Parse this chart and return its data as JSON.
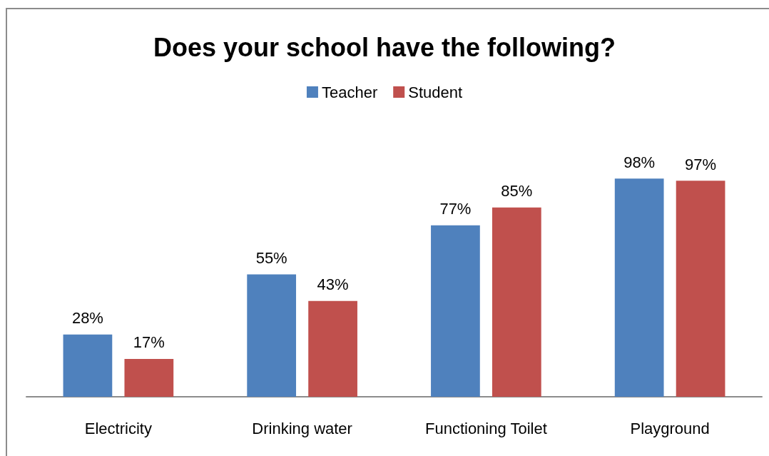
{
  "chart_data": {
    "type": "bar",
    "title": "Does your school have the following?",
    "categories": [
      "Electricity",
      "Drinking water",
      "Functioning Toilet",
      "Playground"
    ],
    "series": [
      {
        "name": "Teacher",
        "color": "#4f81bd",
        "values": [
          28,
          55,
          77,
          98
        ],
        "value_labels": [
          "28%",
          "55%",
          "77%",
          "98%"
        ]
      },
      {
        "name": "Student",
        "color": "#c0504d",
        "values": [
          17,
          43,
          85,
          97
        ],
        "value_labels": [
          "17%",
          "43%",
          "85%",
          "97%"
        ]
      }
    ],
    "legend": "top",
    "tick_labels": "x"
  }
}
